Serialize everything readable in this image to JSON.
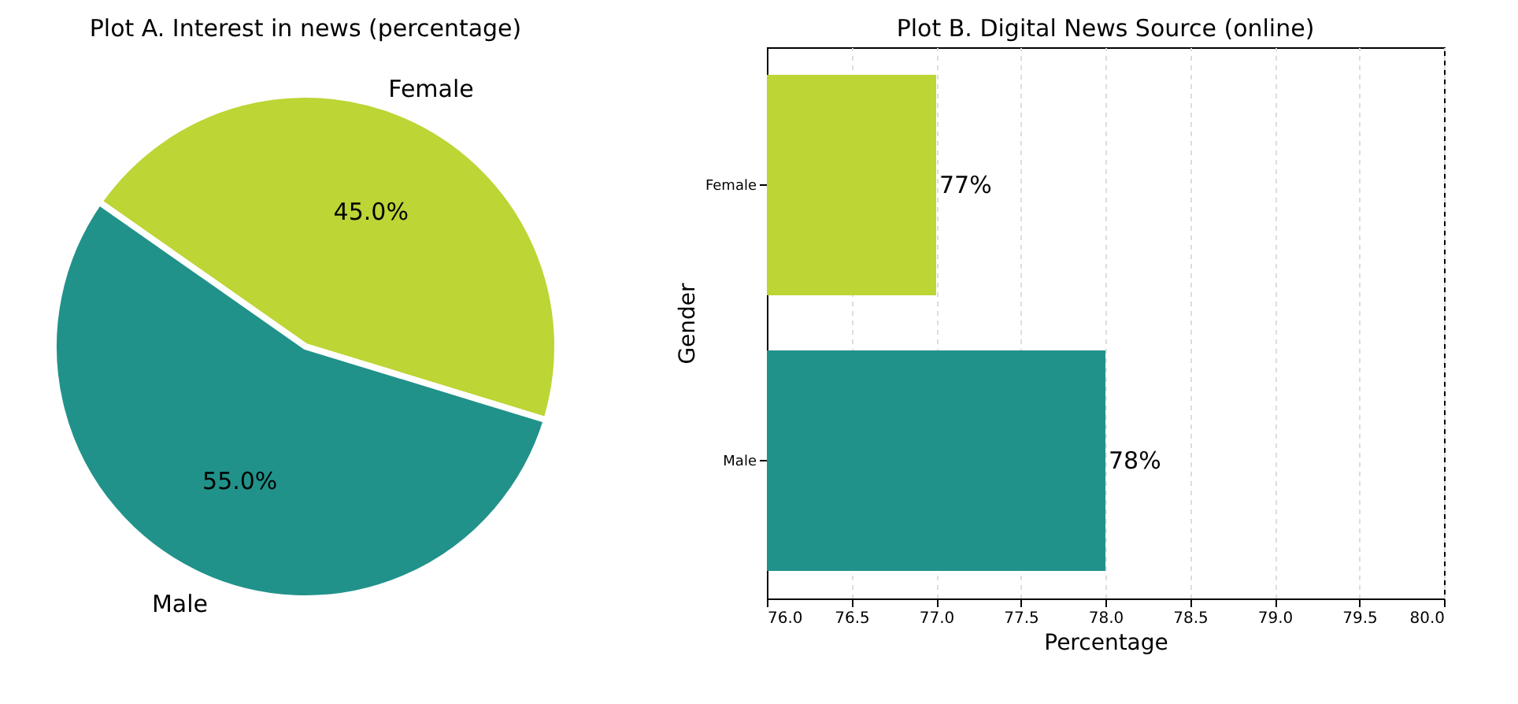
{
  "chart_data": [
    {
      "type": "pie",
      "title": "Plot A. Interest in news (percentage)",
      "categories": [
        "Female",
        "Male"
      ],
      "values": [
        45,
        55
      ],
      "colors": [
        "#bdd535",
        "#21928a"
      ],
      "value_labels": [
        "45.0%",
        "55.0%"
      ]
    },
    {
      "type": "bar",
      "orientation": "horizontal",
      "title": "Plot B. Digital News Source (online)",
      "xlabel": "Percentage",
      "ylabel": "Gender",
      "categories": [
        "Female",
        "Male"
      ],
      "values": [
        77,
        78
      ],
      "colors": [
        "#bdd535",
        "#21928a"
      ],
      "value_labels": [
        "77%",
        "78%"
      ],
      "xlim": [
        76,
        80
      ],
      "xticks": [
        {
          "value": 76,
          "label": "76.0"
        },
        76.5,
        {
          "value": 77,
          "label": "77.0"
        },
        77.5,
        {
          "value": 78,
          "label": "78.0"
        },
        78.5,
        {
          "value": 79,
          "label": "79.0"
        },
        79.5,
        {
          "value": 80,
          "label": "80.0"
        }
      ],
      "grid": "x"
    }
  ]
}
